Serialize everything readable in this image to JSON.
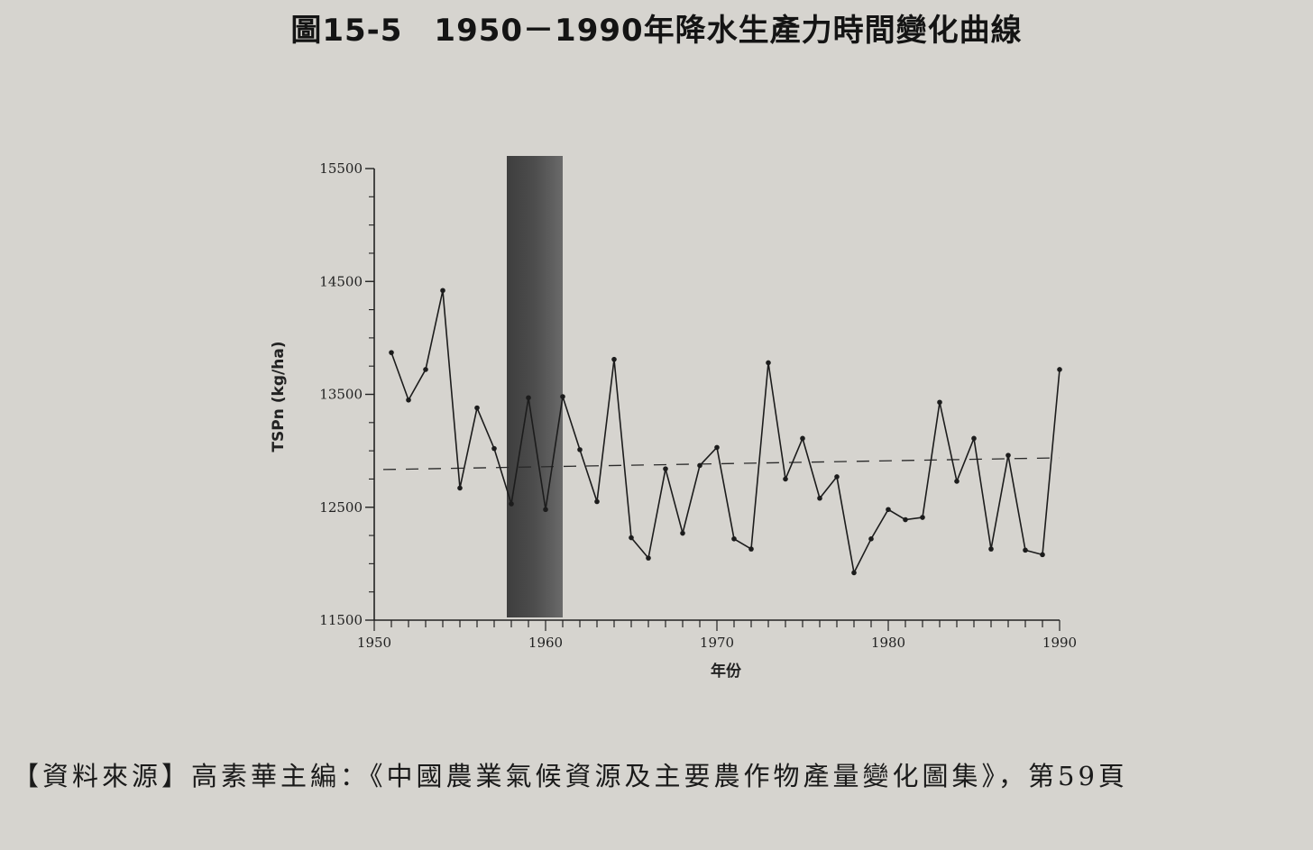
{
  "figure": {
    "title": "圖15-5　1950－1990年降水生產力時間變化曲線",
    "source": "【資料來源】高素華主編：《中國農業氣候資源及主要農作物產量變化圖集》，第59頁"
  },
  "chart_data": {
    "type": "line",
    "title": "",
    "xlabel": "年份",
    "ylabel": "TSPn (kg/ha)",
    "xlim": [
      1950,
      1990
    ],
    "ylim": [
      11500,
      15500
    ],
    "x_ticks": [
      1950,
      1960,
      1970,
      1980,
      1990
    ],
    "y_ticks": [
      11500,
      12500,
      13500,
      14500,
      15500
    ],
    "grid": false,
    "legend": "none",
    "series": [
      {
        "x": [
          1951,
          1952,
          1953,
          1954,
          1955,
          1956,
          1957,
          1958,
          1959,
          1960,
          1961,
          1962,
          1963,
          1964,
          1965,
          1966,
          1967,
          1968,
          1969,
          1970,
          1971,
          1972,
          1973,
          1974,
          1975,
          1976,
          1977,
          1978,
          1979,
          1980,
          1981,
          1982,
          1983,
          1984,
          1985,
          1986,
          1987,
          1988,
          1989,
          1990
        ],
        "y": [
          13870,
          13450,
          13720,
          14420,
          12670,
          13380,
          13020,
          12530,
          13470,
          12480,
          13480,
          13010,
          12550,
          13810,
          12230,
          12050,
          12840,
          12270,
          12870,
          13030,
          12220,
          12130,
          13780,
          12750,
          13110,
          12580,
          12770,
          11920,
          12220,
          12480,
          12390,
          12410,
          13430,
          12730,
          13110,
          12130,
          12960,
          12120,
          12080,
          13720
        ]
      }
    ],
    "reference_line": {
      "y": 12850,
      "style": "dashed"
    },
    "highlight_band": {
      "x_start": 1958,
      "x_end": 1961,
      "color": "#4d4d4d"
    }
  }
}
